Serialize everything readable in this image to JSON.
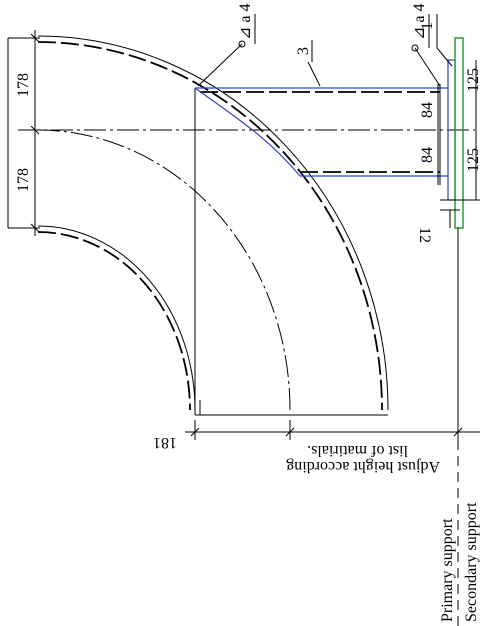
{
  "dimensions": [
    "178",
    "178",
    "84",
    "84",
    "125",
    "125",
    "12",
    "181"
  ],
  "weld_labels": [
    "⊿ a 4",
    "⊿ a 4"
  ],
  "items": [
    "3",
    "1"
  ],
  "note": [
    "Adjust height according",
    "list of matirials."
  ],
  "legend": [
    "Primary support",
    "Secondary support"
  ]
}
